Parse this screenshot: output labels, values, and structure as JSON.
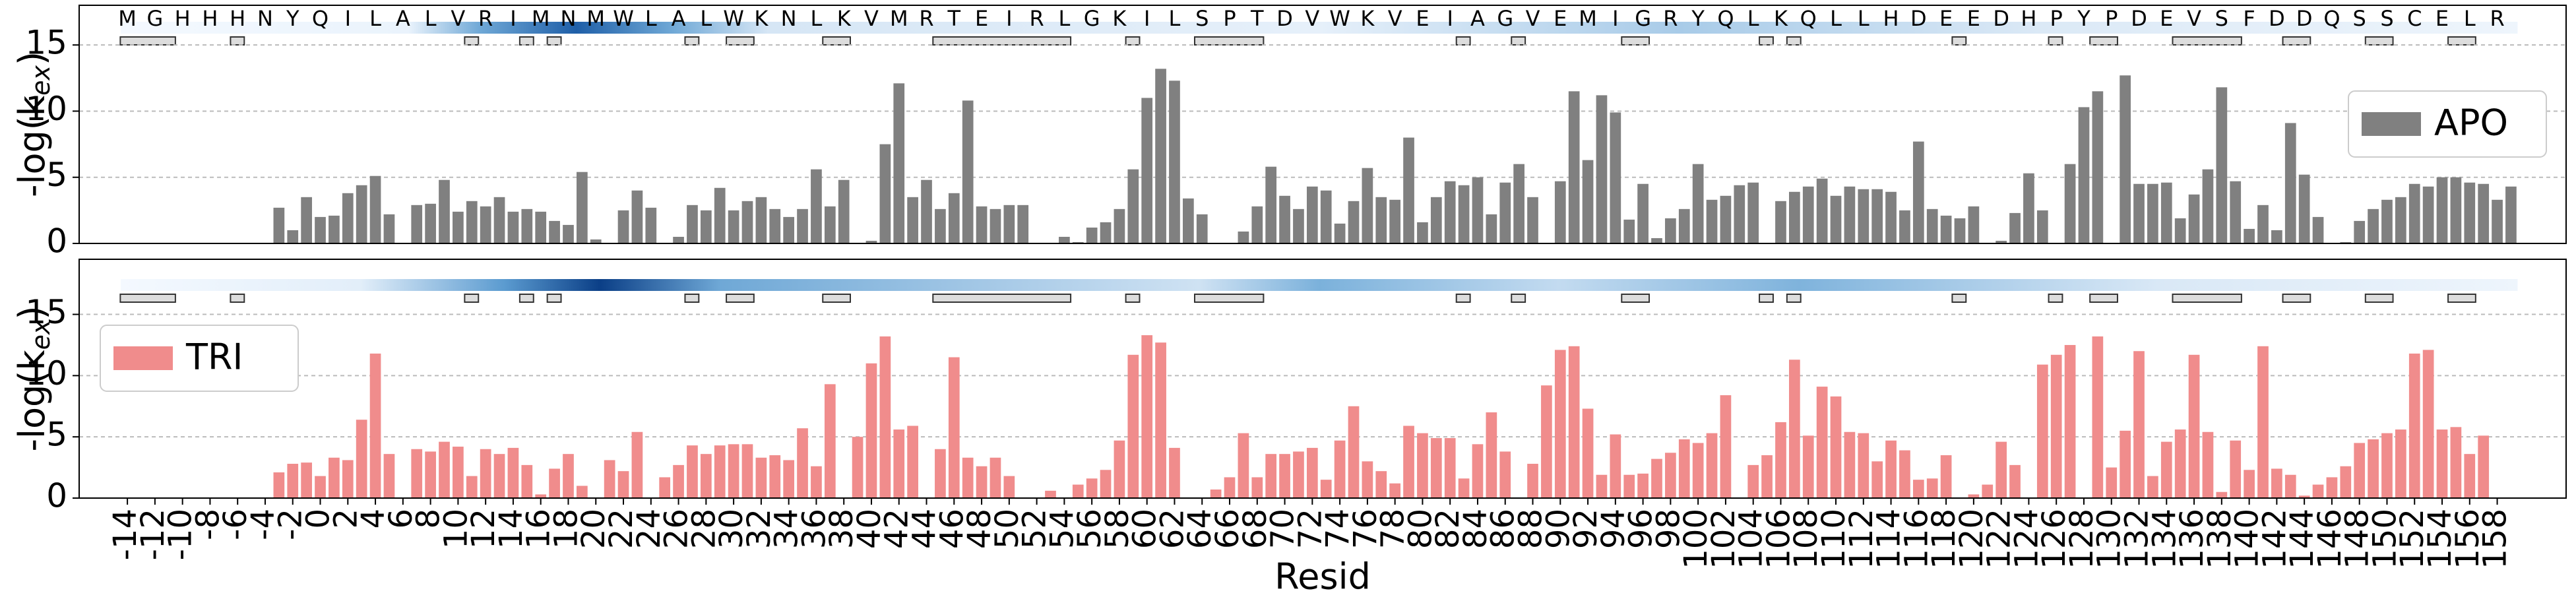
{
  "sequence": [
    "M",
    "G",
    "H",
    "H",
    "H",
    "N",
    "Y",
    "Q",
    "I",
    "L",
    "A",
    "L",
    "V",
    "R",
    "I",
    "M",
    "N",
    "M",
    "W",
    "L",
    "A",
    "L",
    "W",
    "K",
    "N",
    "L",
    "K",
    "V",
    "M",
    "R",
    "T",
    "E",
    "I",
    "R",
    "L",
    "G",
    "K",
    "I",
    "L",
    "S",
    "P",
    "T",
    "D",
    "V",
    "W",
    "K",
    "V",
    "E",
    "I",
    "A",
    "G",
    "V",
    "E",
    "M",
    "I",
    "G",
    "R",
    "Y",
    "Q",
    "L",
    "K",
    "Q",
    "L",
    "L",
    "H",
    "D",
    "E",
    "E",
    "D",
    "H",
    "P",
    "Y",
    "P",
    "D",
    "E",
    "V",
    "S",
    "F",
    "D",
    "D",
    "Q",
    "S",
    "S",
    "C",
    "E",
    "L",
    "R"
  ],
  "chart_data": [
    {
      "type": "bar",
      "ylabel": "-log(k",
      "ylabel_sub": "ex",
      "ylabel_end": ")",
      "xlim": [
        -17.5,
        163
      ],
      "ylim": [
        0,
        18
      ],
      "yticks": [
        0,
        5,
        10,
        15
      ],
      "grid": true,
      "legend": "right",
      "x": [
        -14,
        -13,
        -12,
        -11,
        -10,
        -9,
        -8,
        -7,
        -6,
        -5,
        -4,
        -3,
        -2,
        -1,
        0,
        1,
        2,
        3,
        4,
        5,
        6,
        7,
        8,
        9,
        10,
        11,
        12,
        13,
        14,
        15,
        16,
        17,
        18,
        19,
        20,
        21,
        22,
        23,
        24,
        25,
        26,
        27,
        28,
        29,
        30,
        31,
        32,
        33,
        34,
        35,
        36,
        37,
        38,
        39,
        40,
        41,
        42,
        43,
        44,
        45,
        46,
        47,
        48,
        49,
        50,
        51,
        52,
        53,
        54,
        55,
        56,
        57,
        58,
        59,
        60,
        61,
        62,
        63,
        64,
        65,
        66,
        67,
        68,
        69,
        70,
        71,
        72,
        73,
        74,
        75,
        76,
        77,
        78,
        79,
        80,
        81,
        82,
        83,
        84,
        85,
        86,
        87,
        88,
        89,
        90,
        91,
        92,
        93,
        94,
        95,
        96,
        97,
        98,
        99,
        100,
        101,
        102,
        103,
        104,
        105,
        106,
        107,
        108,
        109,
        110,
        111,
        112,
        113,
        114,
        115,
        116,
        117,
        118,
        119,
        120,
        121,
        122,
        123,
        124,
        125,
        126,
        127,
        128,
        129,
        130,
        131,
        132,
        133,
        134,
        135,
        136,
        137,
        138,
        139,
        140,
        141,
        142,
        143,
        144,
        145,
        146,
        147,
        148,
        149,
        150,
        151,
        152,
        153,
        154,
        155,
        156,
        157,
        158,
        159
      ],
      "series": [
        {
          "name": "APO",
          "color": "#808080",
          "values": [
            null,
            null,
            null,
            null,
            null,
            null,
            null,
            null,
            null,
            null,
            null,
            2.7,
            1,
            3.5,
            2,
            2.1,
            3.8,
            4.4,
            5.1,
            2.2,
            null,
            2.9,
            3,
            4.8,
            2.4,
            3.2,
            2.8,
            3.5,
            2.4,
            2.6,
            2.4,
            1.7,
            1.4,
            5.4,
            0.3,
            null,
            2.5,
            4,
            2.7,
            null,
            0.5,
            2.9,
            2.5,
            4.2,
            2.5,
            3.2,
            3.5,
            2.6,
            2,
            2.6,
            5.6,
            2.8,
            4.8,
            null,
            0.2,
            7.5,
            12.1,
            3.5,
            4.8,
            2.6,
            3.8,
            10.8,
            2.8,
            2.6,
            2.9,
            2.9,
            null,
            null,
            0.5,
            0.1,
            1.2,
            1.6,
            2.6,
            5.6,
            11,
            13.2,
            12.3,
            3.4,
            2.2,
            null,
            null,
            0.9,
            2.8,
            5.8,
            3.6,
            2.6,
            4.3,
            4,
            1.5,
            3.2,
            5.7,
            3.5,
            3.3,
            8,
            1.6,
            3.5,
            4.7,
            4.4,
            5,
            2.2,
            4.6,
            6,
            3.5,
            null,
            4.7,
            11.5,
            6.3,
            11.2,
            9.9,
            1.8,
            4.5,
            0.4,
            1.9,
            2.6,
            6,
            3.3,
            3.6,
            4.4,
            4.6,
            null,
            3.2,
            3.9,
            4.3,
            4.9,
            3.6,
            4.3,
            4.1,
            4.1,
            3.9,
            2.5,
            7.7,
            2.6,
            2.1,
            1.9,
            2.8,
            null,
            0.2,
            2.3,
            5.3,
            2.5,
            null,
            6,
            10.3,
            11.5,
            null,
            12.7,
            4.5,
            4.5,
            4.6,
            1.9,
            3.7,
            5.6,
            11.8,
            4.7,
            1.1,
            2.9,
            1,
            9.1,
            5.2,
            2,
            null,
            0.1,
            1.7,
            2.6,
            3.3,
            3.5,
            4.5,
            4.3,
            5,
            5,
            4.6,
            4.5,
            3.3,
            4.3
          ]
        }
      ]
    },
    {
      "type": "bar",
      "ylabel": "-log(k",
      "ylabel_sub": "ex",
      "ylabel_end": ")",
      "xlabel": "Resid",
      "xlim": [
        -17.5,
        163
      ],
      "ylim": [
        0,
        19.5
      ],
      "yticks": [
        0,
        5,
        10,
        15
      ],
      "grid": true,
      "legend": "left",
      "xticks": [
        -14,
        -12,
        -10,
        -8,
        -6,
        -4,
        -2,
        0,
        2,
        4,
        6,
        8,
        10,
        12,
        14,
        16,
        18,
        20,
        22,
        24,
        26,
        28,
        30,
        32,
        34,
        36,
        38,
        40,
        42,
        44,
        46,
        48,
        50,
        52,
        54,
        56,
        58,
        60,
        62,
        64,
        66,
        68,
        70,
        72,
        74,
        76,
        78,
        80,
        82,
        84,
        86,
        88,
        90,
        92,
        94,
        96,
        98,
        100,
        102,
        104,
        106,
        108,
        110,
        112,
        114,
        116,
        118,
        120,
        122,
        124,
        126,
        128,
        130,
        132,
        134,
        136,
        138,
        140,
        142,
        144,
        146,
        148,
        150,
        152,
        154,
        156,
        158
      ],
      "x": [
        -14,
        -13,
        -12,
        -11,
        -10,
        -9,
        -8,
        -7,
        -6,
        -5,
        -4,
        -3,
        -2,
        -1,
        0,
        1,
        2,
        3,
        4,
        5,
        6,
        7,
        8,
        9,
        10,
        11,
        12,
        13,
        14,
        15,
        16,
        17,
        18,
        19,
        20,
        21,
        22,
        23,
        24,
        25,
        26,
        27,
        28,
        29,
        30,
        31,
        32,
        33,
        34,
        35,
        36,
        37,
        38,
        39,
        40,
        41,
        42,
        43,
        44,
        45,
        46,
        47,
        48,
        49,
        50,
        51,
        52,
        53,
        54,
        55,
        56,
        57,
        58,
        59,
        60,
        61,
        62,
        63,
        64,
        65,
        66,
        67,
        68,
        69,
        70,
        71,
        72,
        73,
        74,
        75,
        76,
        77,
        78,
        79,
        80,
        81,
        82,
        83,
        84,
        85,
        86,
        87,
        88,
        89,
        90,
        91,
        92,
        93,
        94,
        95,
        96,
        97,
        98,
        99,
        100,
        101,
        102,
        103,
        104,
        105,
        106,
        107,
        108,
        109,
        110,
        111,
        112,
        113,
        114,
        115,
        116,
        117,
        118,
        119,
        120,
        121,
        122,
        123,
        124,
        125,
        126,
        127,
        128,
        129,
        130,
        131,
        132,
        133,
        134,
        135,
        136,
        137,
        138,
        139,
        140,
        141,
        142,
        143,
        144,
        145,
        146,
        147,
        148,
        149,
        150,
        151,
        152,
        153,
        154,
        155,
        156,
        157,
        158,
        159
      ],
      "series": [
        {
          "name": "TRI",
          "color": "#f08c8c",
          "values": [
            null,
            null,
            null,
            null,
            null,
            null,
            null,
            null,
            null,
            null,
            null,
            2.1,
            2.8,
            2.9,
            1.8,
            3.3,
            3.1,
            6.4,
            11.8,
            3.6,
            null,
            4,
            3.8,
            4.6,
            4.2,
            1.8,
            4,
            3.6,
            4.1,
            2.7,
            0.3,
            2.4,
            3.6,
            1,
            null,
            3.1,
            2.2,
            5.4,
            null,
            1.7,
            2.7,
            4.3,
            3.6,
            4.3,
            4.4,
            4.4,
            3.3,
            3.5,
            3.1,
            5.7,
            2.6,
            9.3,
            null,
            5,
            11,
            13.2,
            5.6,
            5.9,
            null,
            4,
            11.5,
            3.3,
            2.6,
            3.3,
            1.8,
            null,
            null,
            0.6,
            null,
            1.1,
            1.6,
            2.3,
            4.7,
            11.7,
            13.3,
            12.7,
            4.1,
            null,
            null,
            0.7,
            1.7,
            5.3,
            1.7,
            3.6,
            3.6,
            3.8,
            4.1,
            1.5,
            4.7,
            7.5,
            3,
            2.2,
            1.2,
            5.9,
            5.3,
            4.9,
            4.9,
            1.6,
            4.4,
            7,
            3.8,
            null,
            2.8,
            9.2,
            12.1,
            12.4,
            7.3,
            1.9,
            5.2,
            1.9,
            2,
            3.2,
            3.7,
            4.8,
            4.5,
            5.3,
            8.4,
            null,
            2.7,
            3.5,
            6.2,
            11.3,
            5.1,
            9.1,
            8.3,
            5.4,
            5.3,
            3,
            4.7,
            3.9,
            1.5,
            1.6,
            3.5,
            null,
            0.3,
            1.1,
            4.6,
            2.7,
            null,
            10.9,
            11.7,
            12.5,
            null,
            13.2,
            2.5,
            5.5,
            12,
            1.8,
            4.6,
            5.6,
            11.7,
            5.4,
            0.5,
            4.7,
            2.3,
            12.4,
            2.4,
            1.9,
            0.2,
            1.1,
            1.7,
            2.6,
            4.5,
            4.8,
            5.3,
            5.6,
            11.8,
            12.1,
            5.6,
            5.8,
            3.6,
            5.1,
            null,
            null
          ]
        }
      ]
    }
  ]
}
